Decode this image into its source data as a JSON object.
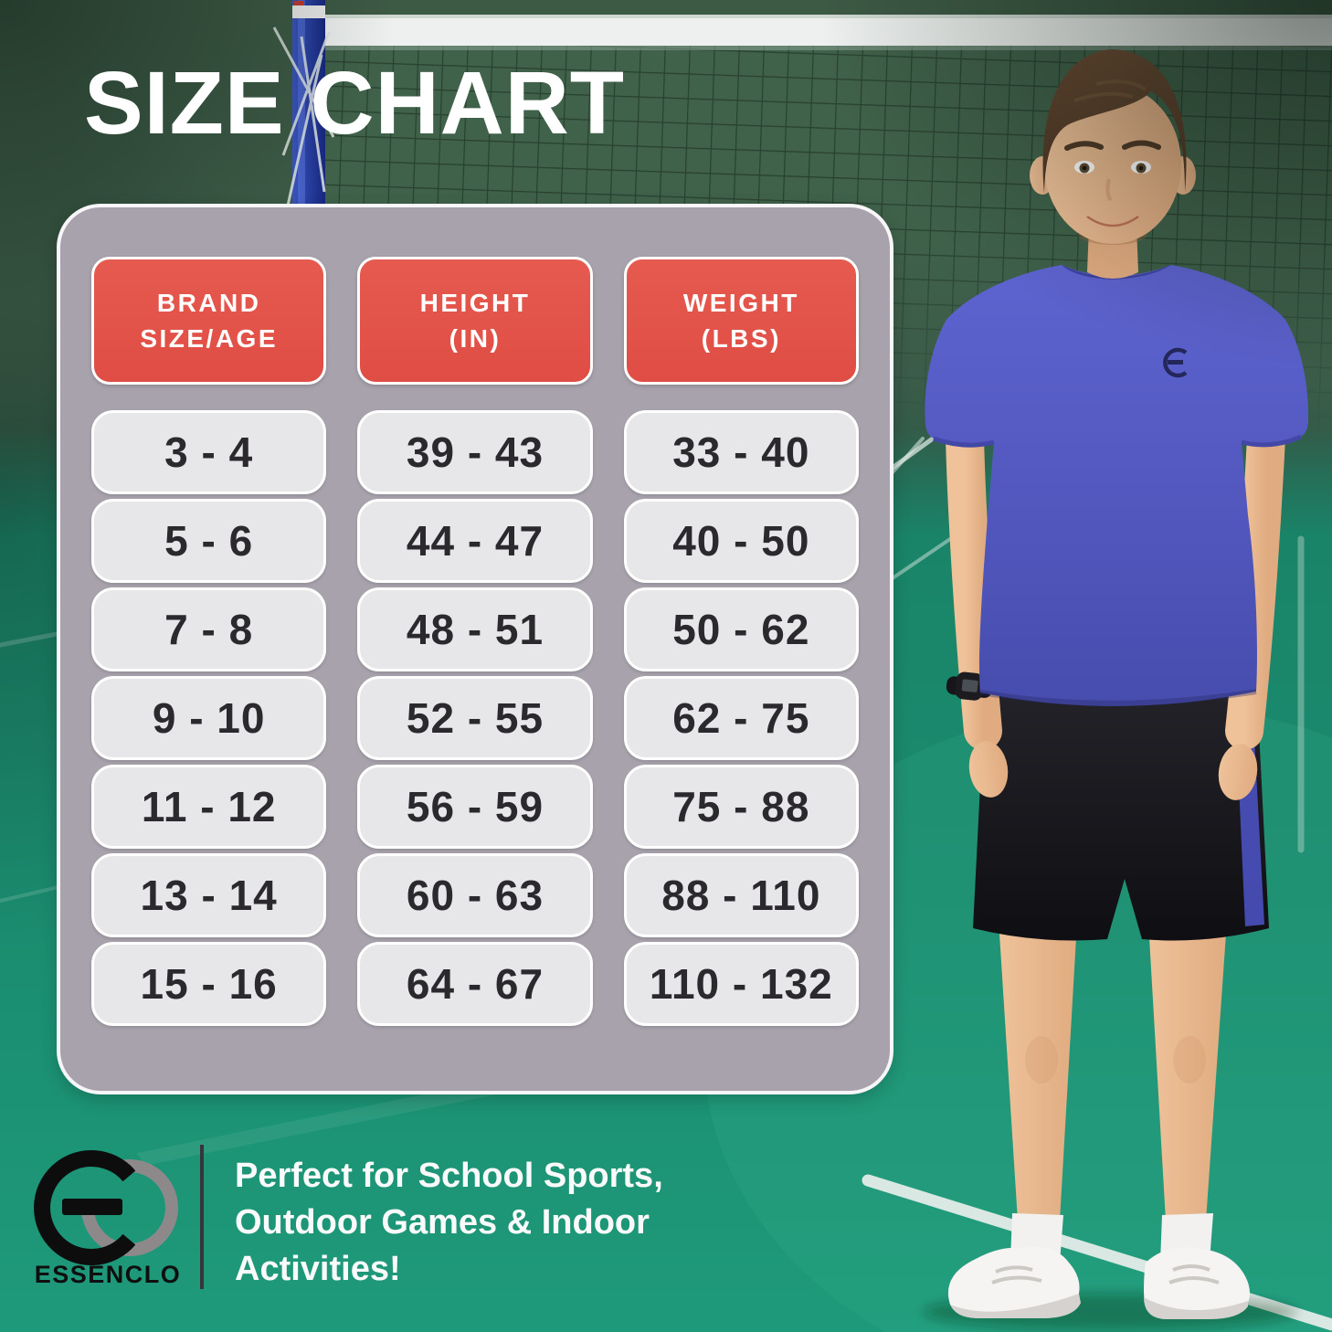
{
  "title": "SIZE CHART",
  "table": {
    "header_labels": [
      "BRAND\nSIZE/AGE",
      "HEIGHT\n(IN)",
      "WEIGHT\n(LBS)"
    ]
  },
  "chart_data": {
    "type": "table",
    "columns": [
      "BRAND SIZE/AGE",
      "HEIGHT (IN)",
      "WEIGHT (LBS)"
    ],
    "rows": [
      [
        "3 - 4",
        "39 - 43",
        "33 - 40"
      ],
      [
        "5 - 6",
        "44 - 47",
        "40 - 50"
      ],
      [
        "7 - 8",
        "48 - 51",
        "50 - 62"
      ],
      [
        "9 - 10",
        "52 - 55",
        "62 - 75"
      ],
      [
        "11 - 12",
        "56 - 59",
        "75 - 88"
      ],
      [
        "13 - 14",
        "60 - 63",
        "88 - 110"
      ],
      [
        "15 - 16",
        "64 - 67",
        "110 - 132"
      ]
    ]
  },
  "brand": {
    "name": "ESSENCLO",
    "monogram": "EC",
    "tagline": "Perfect for School Sports,\nOutdoor Games & Indoor\nActivities!"
  },
  "colors": {
    "accent_red": "#E0544A",
    "panel_gray": "#A7A2AC",
    "cell_gray": "#E7E6E8",
    "text_dark": "#2B292D",
    "wall_green": "#3D5A45",
    "court_teal": "#1B8E71",
    "shirt_blue": "#5157BD",
    "white": "#FFFFFF"
  }
}
